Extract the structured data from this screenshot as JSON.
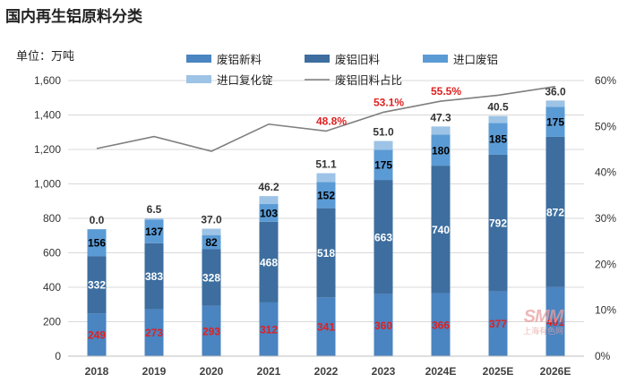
{
  "page": {
    "title": "国内再生铝原料分类"
  },
  "unit_label": "单位：万吨",
  "watermark": {
    "logo": "SMM",
    "text": "上海有色网"
  },
  "colors": {
    "scrap_new": "#4a84c1",
    "scrap_old": "#3d6e9f",
    "import_scrap": "#5b9bd5",
    "imported_reclaimed": "#9dc3e6",
    "share_line": "#7f7f7f",
    "label_red": "#e02020",
    "grid": "#d9d9d9"
  },
  "chart_data": {
    "type": "bar",
    "stacked": true,
    "title": "国内再生铝原料分类",
    "categories": [
      "2018",
      "2019",
      "2020",
      "2021",
      "2022",
      "2023",
      "2024E",
      "2025E",
      "2026E"
    ],
    "ylim": [
      0,
      1600
    ],
    "yticks": [
      0,
      200,
      400,
      600,
      800,
      1000,
      1200,
      1400,
      1600
    ],
    "ytick_labels": [
      "0",
      "200",
      "400",
      "600",
      "800",
      "1,000",
      "1,200",
      "1,400",
      "1,600"
    ],
    "y2lim": [
      0,
      60
    ],
    "y2ticks": [
      0,
      10,
      20,
      30,
      40,
      50,
      60
    ],
    "y2tick_labels": [
      "0%",
      "10%",
      "20%",
      "30%",
      "40%",
      "50%",
      "60%"
    ],
    "legend_position": "top-center",
    "series": [
      {
        "name": "废铝新料",
        "key": "scrap_new",
        "values": [
          249,
          273,
          293,
          312,
          341,
          360,
          366,
          377,
          401
        ],
        "label_color": "#e02020"
      },
      {
        "name": "废铝旧料",
        "key": "scrap_old",
        "values": [
          332,
          383,
          328,
          468,
          518,
          663,
          740,
          792,
          872
        ],
        "label_color": "#ffffff"
      },
      {
        "name": "进口废铝",
        "key": "import_scrap",
        "values": [
          156,
          137,
          82,
          103,
          152,
          175,
          180,
          185,
          175
        ],
        "label_color": "#000000"
      },
      {
        "name": "进口复化锭",
        "key": "imported_reclaimed",
        "values": [
          0.0,
          6.5,
          37.0,
          46.2,
          51.1,
          51.0,
          47.3,
          40.5,
          36.0
        ],
        "labels": [
          "0.0",
          "6.5",
          "37.0",
          "46.2",
          "51.1",
          "51.0",
          "47.3",
          "40.5",
          "36.0"
        ],
        "label_color": "#333333"
      }
    ],
    "line_series": {
      "name": "废铝旧料占比",
      "axis": "secondary",
      "values": [
        45.2,
        47.8,
        44.6,
        50.5,
        49.0,
        53.1,
        55.5,
        56.8,
        58.7
      ],
      "annotations": [
        {
          "index": 4,
          "label": "48.8%"
        },
        {
          "index": 5,
          "label": "53.1%"
        },
        {
          "index": 6,
          "label": "55.5%"
        }
      ]
    }
  }
}
